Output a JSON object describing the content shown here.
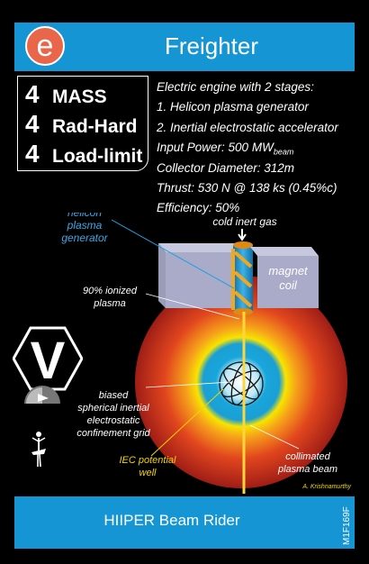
{
  "card": {
    "logo_letter": "e",
    "title": "Freighter",
    "footer_label": "HIIPER Beam Rider",
    "code": "M1F169F",
    "colors": {
      "header": "#1595d3",
      "logo": "#e9664a"
    }
  },
  "stats": [
    {
      "value": "4",
      "label": "MASS"
    },
    {
      "value": "4",
      "label": "Rad-Hard"
    },
    {
      "value": "4",
      "label": "Load-limit"
    }
  ],
  "description": {
    "line1": "Electric engine with 2 stages:",
    "line2": "1. Helicon plasma generator",
    "line3": "2. Inertial electrostatic accelerator",
    "line4_prefix": "Input Power: 500 MW",
    "line4_sub": "beam",
    "line5": "Collector Diameter: 312m",
    "line6": "Thrust: 530 N @ 138 ks (0.45%c)",
    "line7": "Efficiency: 50%"
  },
  "diagram": {
    "label_helicon_1": "helicon",
    "label_helicon_2": "plasma",
    "label_helicon_3": "generator",
    "label_cold_gas": "cold inert gas",
    "label_magnet_1": "magnet",
    "label_magnet_2": "coil",
    "label_ionized_1": "90% ionized",
    "label_ionized_2": "plasma",
    "label_biased_1": "biased",
    "label_biased_2": "spherical inertial",
    "label_biased_3": "electrostatic",
    "label_biased_4": "confinement grid",
    "label_iec_1": "IEC potential",
    "label_iec_2": "well",
    "label_collimated_1": "collimated",
    "label_collimated_2": "plasma beam",
    "artist": "A. Krishnamurthy"
  },
  "badges": {
    "v_letter": "V",
    "icons": [
      "v-hexagon-icon",
      "radiation-dome-icon",
      "dancer-icon"
    ]
  }
}
